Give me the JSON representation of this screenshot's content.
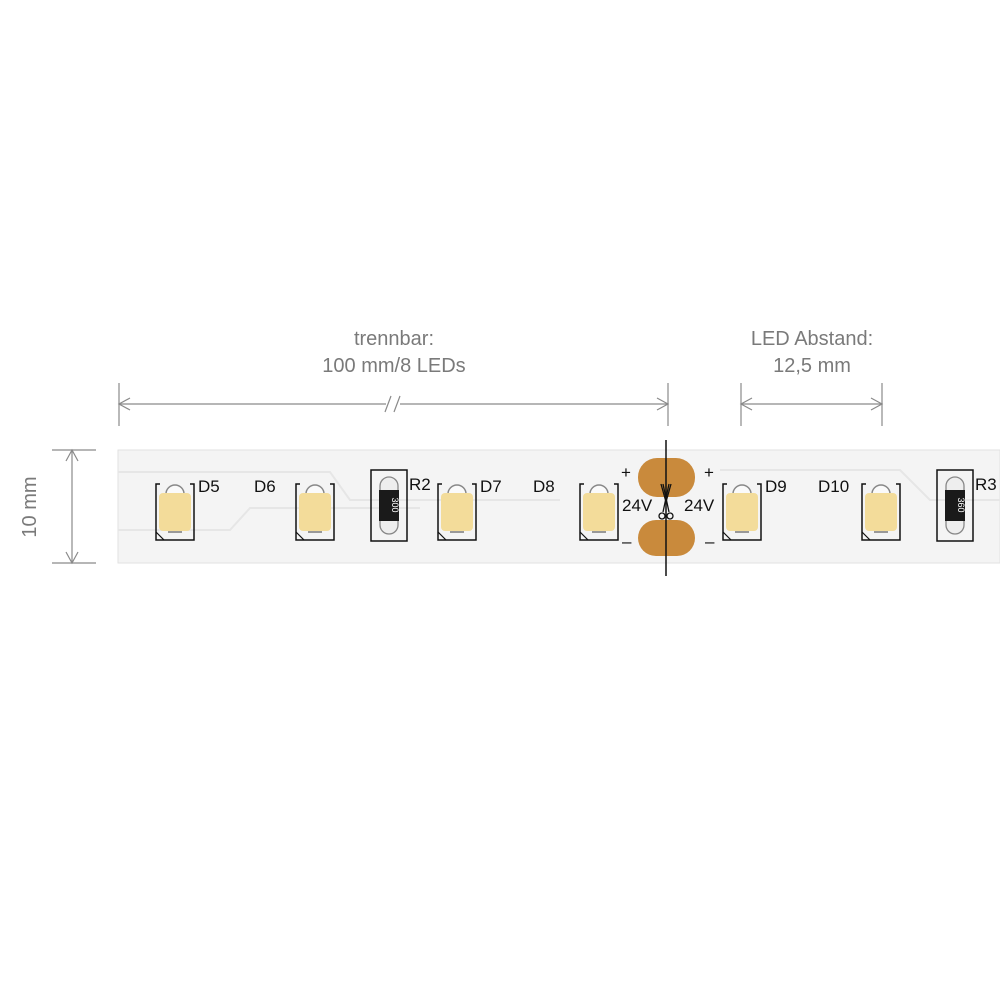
{
  "dimensions": {
    "cut_interval_title": "trennbar:",
    "cut_interval_value": "100 mm/8 LEDs",
    "led_spacing_title": "LED Abstand:",
    "led_spacing_value": "12,5 mm",
    "width": "10 mm"
  },
  "strip": {
    "leds": [
      "D5",
      "D6",
      "D7",
      "D8",
      "D9",
      "D10"
    ],
    "resistors": [
      {
        "label": "R2",
        "code": "300"
      },
      {
        "label": "R3",
        "code": "360"
      }
    ],
    "voltage_left": "24V",
    "voltage_right": "24V",
    "plus": "+",
    "minus": "–"
  },
  "colors": {
    "led": "#f3dc9a",
    "pad": "#c98a3c",
    "strip": "#f4f4f4",
    "dimension": "#7a7a7a"
  }
}
